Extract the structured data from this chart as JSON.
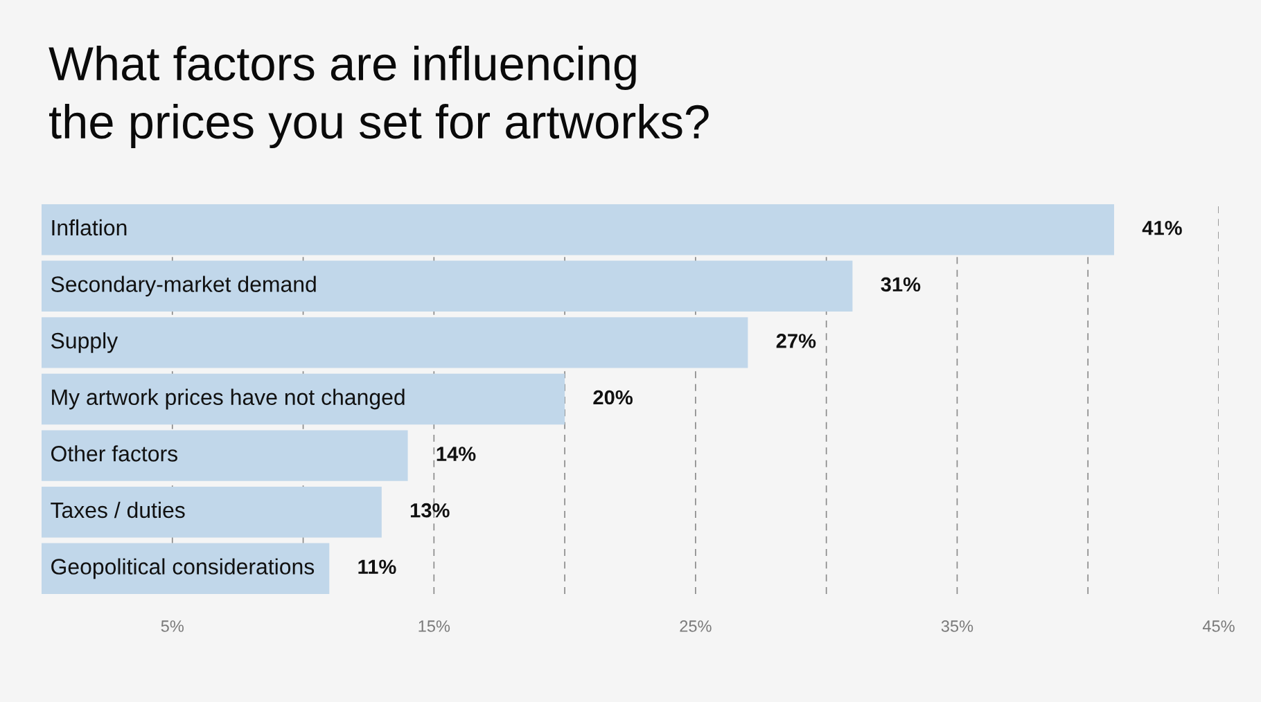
{
  "chart_data": {
    "type": "bar",
    "orientation": "horizontal",
    "title": "What factors are influencing\nthe prices you set for artworks?",
    "categories": [
      "Inflation",
      "Secondary-market demand",
      "Supply",
      "My artwork prices have not changed",
      "Other factors",
      "Taxes / duties",
      "Geopolitical considerations"
    ],
    "values": [
      41,
      31,
      27,
      20,
      14,
      13,
      11
    ],
    "value_labels": [
      "41%",
      "31%",
      "27%",
      "20%",
      "14%",
      "13%",
      "11%"
    ],
    "color": "#c1d7ea",
    "xlim": [
      0,
      45
    ],
    "xticks": [
      {
        "value": 5,
        "label": "5%"
      },
      {
        "value": 10,
        "label": null
      },
      {
        "value": 15,
        "label": "15%"
      },
      {
        "value": 20,
        "label": null
      },
      {
        "value": 25,
        "label": "25%"
      },
      {
        "value": 30,
        "label": null
      },
      {
        "value": 35,
        "label": "35%"
      },
      {
        "value": 40,
        "label": null
      },
      {
        "value": 45,
        "label": "45%"
      }
    ],
    "grid": "x",
    "line_style": "dashed"
  }
}
